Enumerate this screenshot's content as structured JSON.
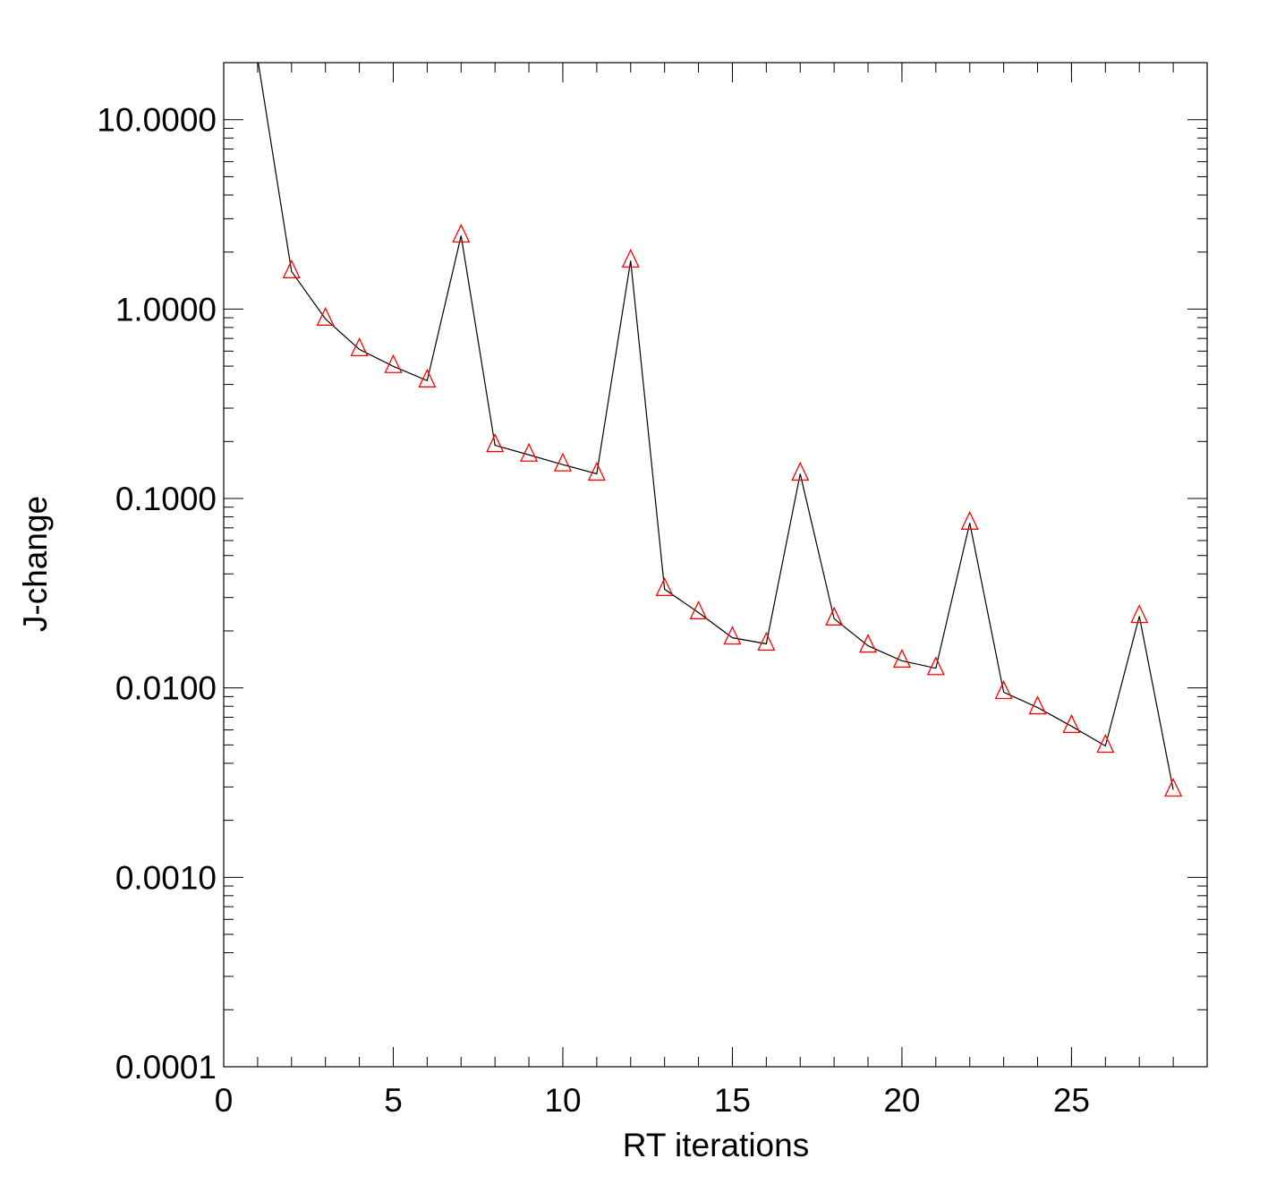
{
  "chart_data": {
    "type": "line",
    "xlabel": "RT iterations",
    "ylabel": "J-change",
    "x": [
      1,
      2,
      3,
      4,
      5,
      6,
      7,
      8,
      9,
      10,
      11,
      12,
      13,
      14,
      15,
      16,
      17,
      18,
      19,
      20,
      21,
      22,
      23,
      24,
      25,
      26,
      27,
      28
    ],
    "series": [
      {
        "line_color": "#000000",
        "marker_color": "#ff0000",
        "values": [
          21,
          1.58,
          0.887,
          0.613,
          0.499,
          0.419,
          2.44,
          0.191,
          0.17,
          0.151,
          0.135,
          1.8,
          0.0332,
          0.025,
          0.0184,
          0.0171,
          0.135,
          0.0232,
          0.0167,
          0.0139,
          0.0127,
          0.0743,
          0.00949,
          0.00788,
          0.00628,
          0.00494,
          0.0239,
          0.0029
        ]
      }
    ],
    "xlim": [
      0,
      29
    ],
    "xticks": [
      0,
      5,
      10,
      15,
      20,
      25
    ],
    "ylim": [
      0.0001,
      20
    ],
    "log_y": true,
    "yticks": [
      {
        "value": 0.0001,
        "label": "0.0001"
      },
      {
        "value": 0.001,
        "label": "0.0010"
      },
      {
        "value": 0.01,
        "label": "0.0100"
      },
      {
        "value": 0.1,
        "label": "0.1000"
      },
      {
        "value": 1,
        "label": "1.0000"
      },
      {
        "value": 10,
        "label": "10.0000"
      }
    ],
    "minor_ticks": true
  }
}
